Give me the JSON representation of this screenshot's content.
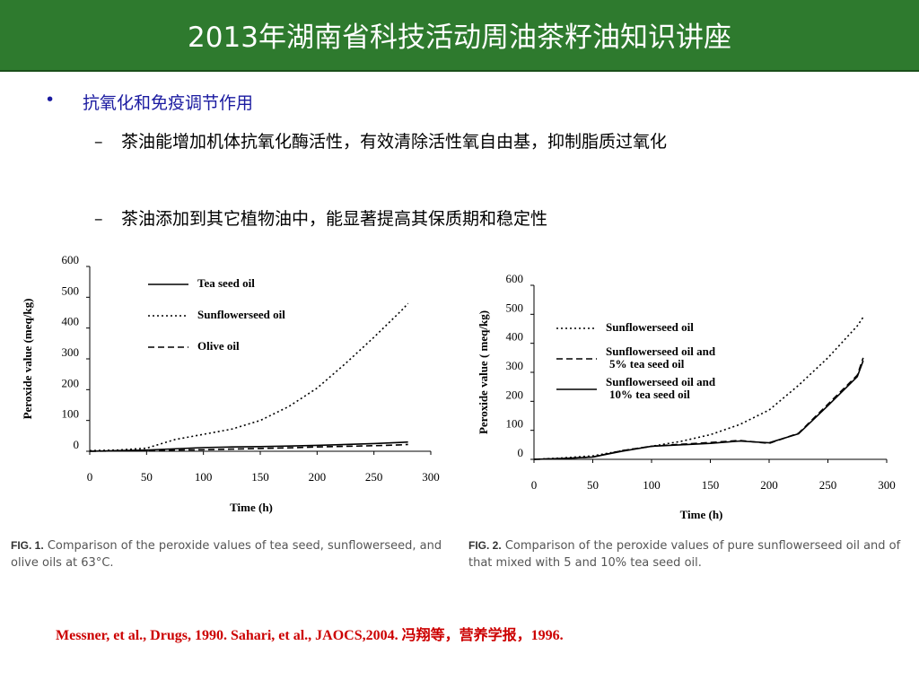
{
  "header": {
    "title": "2013年湖南省科技活动周油茶籽油知识讲座"
  },
  "bullets": [
    {
      "text": "抗氧化和免疫调节作用",
      "items": [
        "茶油能增加机体抗氧化酶活性，有效清除活性氧自由基，抑制脂质过氧化",
        "茶油添加到其它植物油中，能显著提高其保质期和稳定性"
      ]
    }
  ],
  "chart_data": [
    {
      "type": "line",
      "x_label": "Time (h)",
      "y_label": "Peroxide value (meq/kg)",
      "caption_label": "FIG. 1.",
      "caption": "Comparison of the peroxide values of tea seed, sunflowerseed, and olive oils at 63°C.",
      "x": [
        0,
        25,
        50,
        75,
        100,
        125,
        150,
        175,
        200,
        225,
        250,
        275,
        280
      ],
      "series": [
        {
          "name": "Tea seed oil",
          "color": "#000000",
          "dash": "solid",
          "values": [
            0,
            2,
            4,
            8,
            12,
            14,
            15,
            17,
            19,
            22,
            25,
            29,
            30
          ]
        },
        {
          "name": "Sunflowerseed  oil",
          "color": "#000000",
          "dash": "dotted",
          "values": [
            2,
            4,
            10,
            38,
            55,
            72,
            100,
            145,
            205,
            285,
            370,
            460,
            480
          ]
        },
        {
          "name": "Olive oil",
          "color": "#000000",
          "dash": "dashed",
          "values": [
            0,
            1,
            3,
            4,
            5,
            7,
            9,
            11,
            14,
            16,
            18,
            21,
            22
          ]
        }
      ],
      "xlim": [
        0,
        300
      ],
      "xticks": [
        0,
        50,
        100,
        150,
        200,
        250,
        300
      ],
      "ylim": [
        0,
        600
      ],
      "yticks": [
        0,
        100,
        200,
        300,
        400,
        500,
        600
      ]
    },
    {
      "type": "line",
      "x_label": "Time (h)",
      "y_label": "Peroxide value ( meq/kg)",
      "caption_label": "FIG. 2.",
      "caption": "Comparison of the peroxide values of pure sunflowerseed oil and of that mixed with 5 and 10% tea seed oil.",
      "x": [
        0,
        25,
        50,
        75,
        100,
        125,
        150,
        175,
        200,
        225,
        250,
        275,
        280
      ],
      "series": [
        {
          "name": "Sunflowerseed oil",
          "color": "#000000",
          "dash": "dotted",
          "values": [
            0,
            5,
            12,
            30,
            45,
            62,
            85,
            120,
            170,
            255,
            350,
            460,
            490
          ]
        },
        {
          "name": "Sunflowerseed  oil and 5% tea seed oil",
          "color": "#000000",
          "dash": "dashed",
          "values": [
            0,
            3,
            8,
            30,
            45,
            52,
            58,
            65,
            55,
            90,
            190,
            290,
            350
          ]
        },
        {
          "name": "Sunflowerseed  oil and 10% tea seed oil",
          "color": "#000000",
          "dash": "solid",
          "values": [
            0,
            3,
            8,
            28,
            45,
            50,
            55,
            63,
            57,
            88,
            185,
            285,
            340
          ]
        }
      ],
      "xlim": [
        0,
        300
      ],
      "xticks": [
        0,
        50,
        100,
        150,
        200,
        250,
        300
      ],
      "ylim": [
        0,
        600
      ],
      "yticks": [
        0,
        100,
        200,
        300,
        400,
        500,
        600
      ]
    }
  ],
  "reference": "Messner, et al., Drugs, 1990. Sahari, et al., JAOCS,2004. 冯翔等，营养学报，1996."
}
